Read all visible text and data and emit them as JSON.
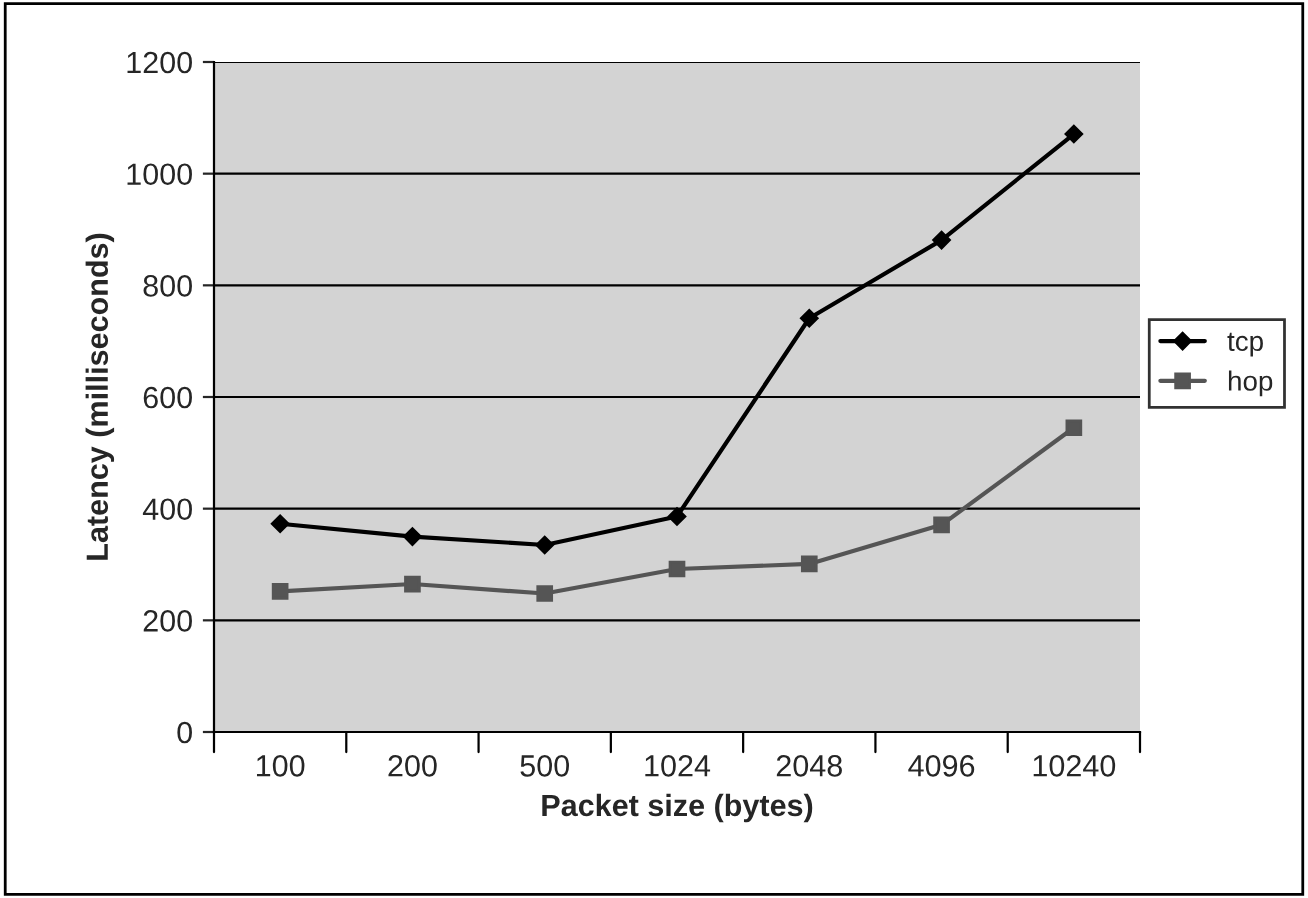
{
  "chart_data": {
    "type": "line",
    "xlabel": "Packet size (bytes)",
    "ylabel": "Latency (milliseconds)",
    "categories": [
      "100",
      "200",
      "500",
      "1024",
      "2048",
      "4096",
      "10240"
    ],
    "series": [
      {
        "name": "tcp",
        "color": "#000000",
        "marker": "diamond",
        "values": [
          373,
          350,
          335,
          386,
          741,
          881,
          1071
        ]
      },
      {
        "name": "hop",
        "color": "#555555",
        "marker": "square",
        "values": [
          252,
          265,
          248,
          292,
          301,
          371,
          545
        ]
      }
    ],
    "ylim": [
      0,
      1200
    ],
    "yticks": [
      0,
      200,
      400,
      600,
      800,
      1000,
      1200
    ],
    "grid": "y",
    "legend": "right",
    "line_style": "solid"
  }
}
